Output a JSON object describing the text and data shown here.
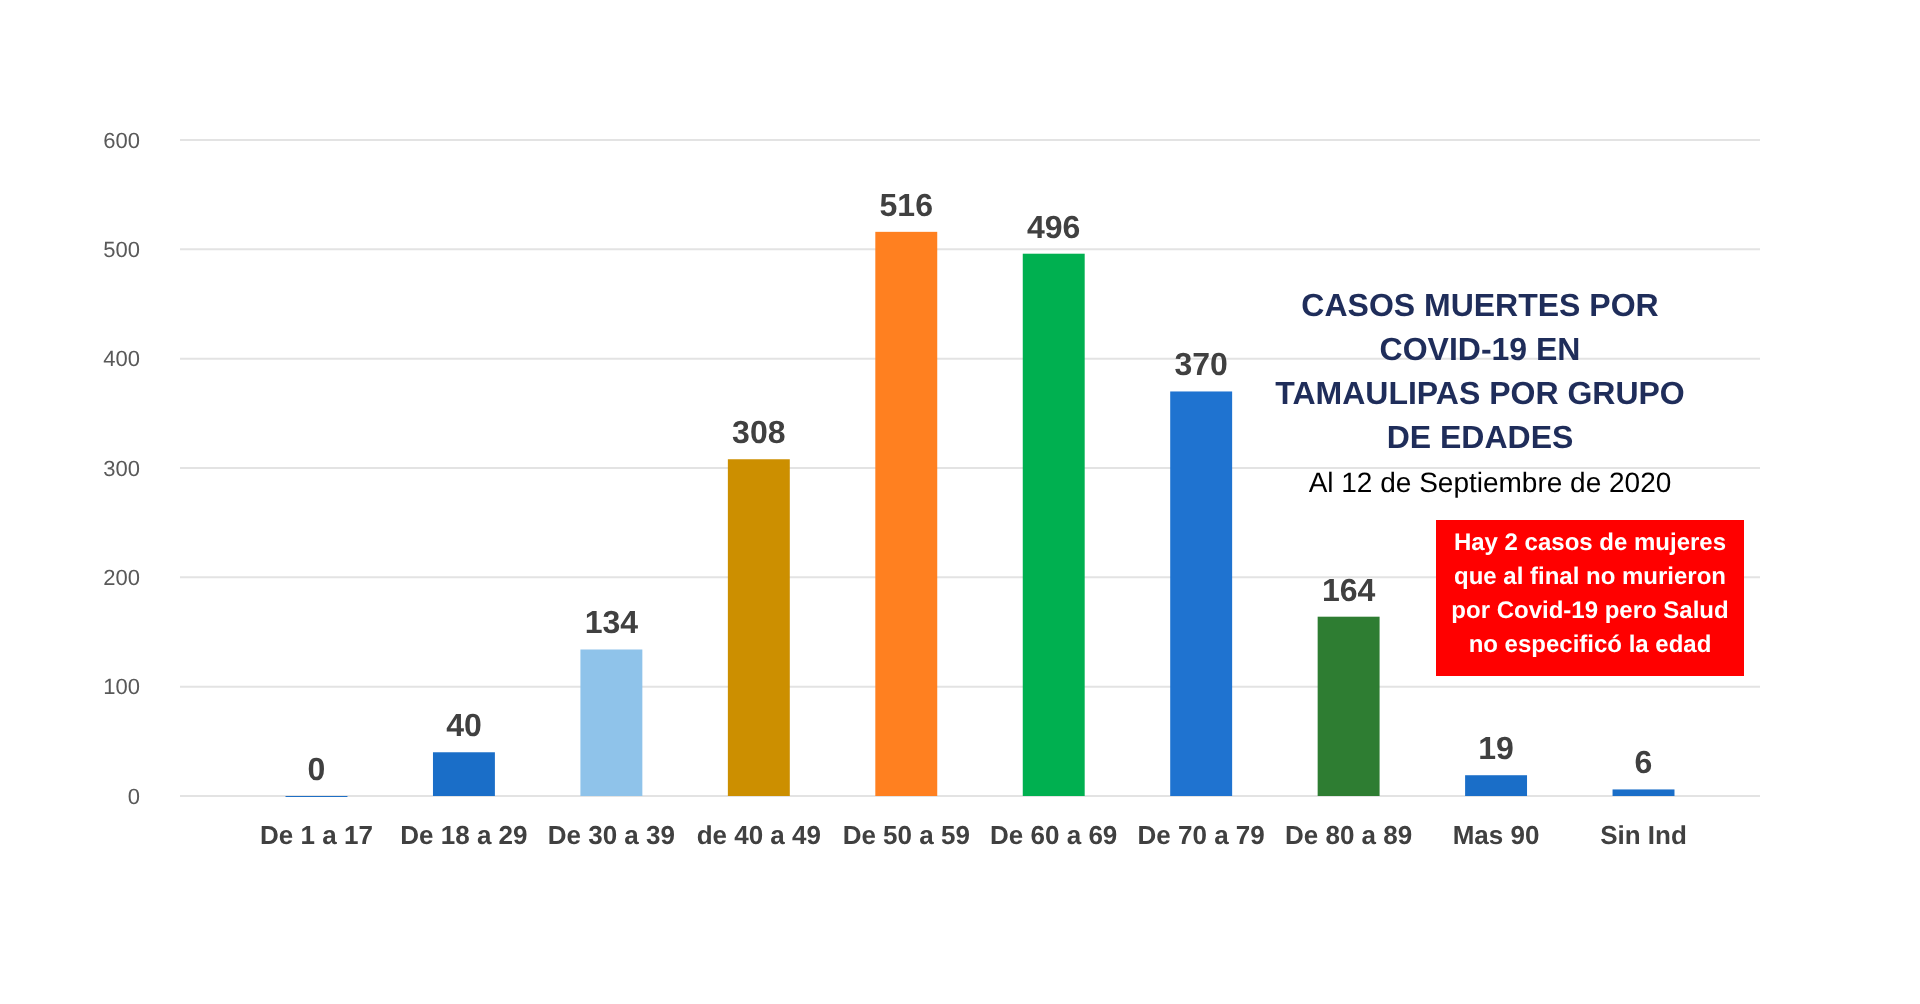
{
  "chart_data": {
    "type": "bar",
    "title": "CASOS MUERTES POR COVID-19 EN TAMAULIPAS POR GRUPO DE EDADES",
    "subtitle": "Al 12 de Septiembre de 2020",
    "categories": [
      "De 1 a 17",
      "De 18 a 29",
      "De 30 a 39",
      "de 40 a 49",
      "De 50 a 59",
      "De 60 a 69",
      "De 70 a 79",
      "De 80 a 89",
      "Mas 90",
      "Sin Ind"
    ],
    "values": [
      0,
      40,
      134,
      308,
      516,
      496,
      370,
      164,
      19,
      6
    ],
    "colors": [
      "#1f6fc5",
      "#1a6ec8",
      "#8fc3ea",
      "#cc8f00",
      "#ff8020",
      "#00b050",
      "#1f73d0",
      "#2e7d32",
      "#1a6ec8",
      "#1a6ec8"
    ],
    "ylim": [
      0,
      600
    ],
    "yticks": [
      0,
      100,
      200,
      300,
      400,
      500,
      600
    ],
    "grid": "y",
    "data_labels": true,
    "annotations": [
      "Hay 2 casos de mujeres que al final no murieron por Covid-19 pero Salud no especificó la edad"
    ]
  }
}
